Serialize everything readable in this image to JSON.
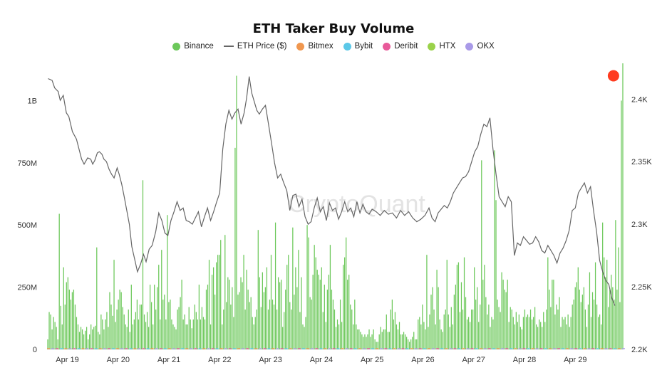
{
  "chart_data": {
    "type": "bar",
    "title": "ETH Taker Buy Volume",
    "legend": [
      {
        "name": "Binance",
        "color": "#6cc85a",
        "kind": "dot"
      },
      {
        "name": "ETH Price ($)",
        "color": "#666666",
        "kind": "line"
      },
      {
        "name": "Bitmex",
        "color": "#f0974f",
        "kind": "dot"
      },
      {
        "name": "Bybit",
        "color": "#5bc8e8",
        "kind": "dot"
      },
      {
        "name": "Deribit",
        "color": "#e85a9a",
        "kind": "dot"
      },
      {
        "name": "HTX",
        "color": "#9ad24a",
        "kind": "dot"
      },
      {
        "name": "OKX",
        "color": "#a99ae8",
        "kind": "dot"
      }
    ],
    "watermark": "CryptoQuant",
    "x_tick_labels": [
      "Apr 19",
      "Apr 20",
      "Apr 21",
      "Apr 22",
      "Apr 23",
      "Apr 24",
      "Apr 25",
      "Apr 26",
      "Apr 27",
      "Apr 28",
      "Apr 29"
    ],
    "x_range_days": [
      18.6,
      29.95
    ],
    "y_left": {
      "ticks": [
        0,
        250,
        500,
        750,
        1000
      ],
      "tick_labels": [
        "0",
        "250M",
        "500M",
        "750M",
        "1B"
      ],
      "range": [
        0,
        1150
      ],
      "unit": "M"
    },
    "y_right": {
      "ticks": [
        2.2,
        2.25,
        2.3,
        2.35,
        2.4
      ],
      "tick_labels": [
        "2.2K",
        "2.25K",
        "2.3K",
        "2.35K",
        "2.4K"
      ],
      "range": [
        2.2,
        2.4286
      ],
      "unit": "K"
    },
    "series": [
      {
        "name": "Binance",
        "color": "#6cc85a",
        "axis": "left",
        "values_M": [
          40,
          150,
          140,
          80,
          130,
          110,
          90,
          40,
          545,
          175,
          100,
          330,
          180,
          270,
          290,
          240,
          200,
          230,
          240,
          180,
          130,
          100,
          70,
          90,
          80,
          60,
          75,
          90,
          40,
          60,
          100,
          80,
          90,
          95,
          410,
          70,
          60,
          140,
          120,
          80,
          120,
          150,
          90,
          230,
          180,
          135,
          360,
          110,
          160,
          200,
          240,
          230,
          170,
          140,
          100,
          90,
          160,
          70,
          260,
          100,
          120,
          150,
          200,
          120,
          180,
          180,
          680,
          140,
          110,
          150,
          90,
          260,
          190,
          100,
          260,
          160,
          250,
          340,
          120,
          400,
          200,
          220,
          120,
          540,
          190,
          200,
          120,
          100,
          90,
          80,
          160,
          170,
          210,
          280,
          120,
          140,
          100,
          100,
          170,
          120,
          85,
          120,
          180,
          150,
          120,
          260,
          120,
          170,
          130,
          120,
          240,
          260,
          360,
          100,
          300,
          330,
          220,
          350,
          380,
          380,
          440,
          100,
          160,
          460,
          190,
          290,
          280,
          180,
          250,
          130,
          810,
          1100,
          220,
          230,
          290,
          270,
          380,
          160,
          320,
          240,
          190,
          210,
          130,
          100,
          130,
          160,
          480,
          290,
          170,
          310,
          230,
          250,
          330,
          160,
          200,
          380,
          200,
          180,
          510,
          160,
          290,
          270,
          280,
          90,
          150,
          240,
          340,
          380,
          190,
          160,
          490,
          220,
          330,
          250,
          400,
          150,
          290,
          100,
          90,
          130,
          500,
          450,
          210,
          200,
          300,
          420,
          370,
          320,
          300,
          280,
          330,
          150,
          260,
          110,
          240,
          300,
          420,
          240,
          200,
          160,
          90,
          120,
          100,
          200,
          110,
          340,
          370,
          450,
          280,
          300,
          180,
          160,
          100,
          200,
          100,
          80,
          80,
          70,
          60,
          50,
          60,
          50,
          60,
          80,
          50,
          60,
          80,
          40,
          30,
          30,
          60,
          90,
          70,
          80,
          80,
          140,
          70,
          70,
          160,
          200,
          120,
          150,
          100,
          80,
          110,
          60,
          60,
          70,
          60,
          50,
          40,
          30,
          40,
          50,
          70,
          40,
          40,
          120,
          130,
          100,
          180,
          110,
          80,
          380,
          90,
          140,
          220,
          250,
          160,
          100,
          320,
          250,
          120,
          80,
          70,
          140,
          160,
          360,
          140,
          90,
          170,
          100,
          220,
          260,
          340,
          350,
          150,
          270,
          160,
          370,
          210,
          120,
          130,
          110,
          160,
          160,
          330,
          200,
          250,
          110,
          180,
          760,
          280,
          340,
          210,
          140,
          180,
          90,
          130,
          120,
          800,
          600,
          200,
          170,
          150,
          310,
          280,
          240,
          230,
          280,
          110,
          170,
          160,
          130,
          100,
          150,
          110,
          140,
          90,
          80,
          130,
          160,
          130,
          140,
          130,
          160,
          120,
          130,
          170,
          100,
          90,
          120,
          110,
          90,
          150,
          110,
          160,
          370,
          240,
          170,
          280,
          280,
          140,
          180,
          160,
          210,
          90,
          130,
          120,
          130,
          100,
          140,
          90,
          130,
          180,
          200,
          250,
          270,
          330,
          240,
          190,
          220,
          250,
          160,
          90,
          180,
          310,
          130,
          230,
          200,
          350,
          180,
          130,
          140,
          100,
          510,
          370,
          290,
          360,
          170,
          240,
          300,
          250,
          200,
          520,
          240,
          410,
          190,
          1000,
          1150
        ]
      },
      {
        "name": "ETH Price ($)",
        "color": "#666666",
        "axis": "right",
        "points_day_K": [
          [
            18.62,
            2.4164
          ],
          [
            18.7,
            2.415
          ],
          [
            18.75,
            2.409
          ],
          [
            18.82,
            2.406
          ],
          [
            18.86,
            2.399
          ],
          [
            18.92,
            2.403
          ],
          [
            18.98,
            2.389
          ],
          [
            19.03,
            2.386
          ],
          [
            19.1,
            2.374
          ],
          [
            19.18,
            2.368
          ],
          [
            19.23,
            2.36
          ],
          [
            19.28,
            2.352
          ],
          [
            19.33,
            2.348
          ],
          [
            19.4,
            2.353
          ],
          [
            19.46,
            2.352
          ],
          [
            19.5,
            2.348
          ],
          [
            19.54,
            2.351
          ],
          [
            19.59,
            2.357
          ],
          [
            19.63,
            2.358
          ],
          [
            19.68,
            2.356
          ],
          [
            19.72,
            2.352
          ],
          [
            19.77,
            2.35
          ],
          [
            19.82,
            2.344
          ],
          [
            19.87,
            2.34
          ],
          [
            19.92,
            2.337
          ],
          [
            19.98,
            2.345
          ],
          [
            20.02,
            2.34
          ],
          [
            20.07,
            2.332
          ],
          [
            20.12,
            2.322
          ],
          [
            20.17,
            2.311
          ],
          [
            20.22,
            2.3
          ],
          [
            20.27,
            2.282
          ],
          [
            20.32,
            2.273
          ],
          [
            20.38,
            2.262
          ],
          [
            20.44,
            2.268
          ],
          [
            20.5,
            2.276
          ],
          [
            20.55,
            2.27
          ],
          [
            20.61,
            2.28
          ],
          [
            20.67,
            2.283
          ],
          [
            20.74,
            2.294
          ],
          [
            20.8,
            2.309
          ],
          [
            20.86,
            2.303
          ],
          [
            20.92,
            2.293
          ],
          [
            20.98,
            2.291
          ],
          [
            21.04,
            2.303
          ],
          [
            21.1,
            2.31
          ],
          [
            21.16,
            2.318
          ],
          [
            21.22,
            2.311
          ],
          [
            21.28,
            2.313
          ],
          [
            21.34,
            2.303
          ],
          [
            21.4,
            2.302
          ],
          [
            21.46,
            2.3
          ],
          [
            21.52,
            2.305
          ],
          [
            21.58,
            2.31
          ],
          [
            21.64,
            2.298
          ],
          [
            21.7,
            2.306
          ],
          [
            21.76,
            2.313
          ],
          [
            21.82,
            2.303
          ],
          [
            21.88,
            2.31
          ],
          [
            21.94,
            2.318
          ],
          [
            22.0,
            2.325
          ],
          [
            22.06,
            2.36
          ],
          [
            22.12,
            2.38
          ],
          [
            22.18,
            2.391
          ],
          [
            22.24,
            2.384
          ],
          [
            22.3,
            2.389
          ],
          [
            22.36,
            2.392
          ],
          [
            22.42,
            2.38
          ],
          [
            22.48,
            2.389
          ],
          [
            22.53,
            2.401
          ],
          [
            22.58,
            2.418
          ],
          [
            22.63,
            2.405
          ],
          [
            22.68,
            2.398
          ],
          [
            22.73,
            2.391
          ],
          [
            22.78,
            2.388
          ],
          [
            22.84,
            2.392
          ],
          [
            22.9,
            2.395
          ],
          [
            22.96,
            2.38
          ],
          [
            23.02,
            2.365
          ],
          [
            23.08,
            2.349
          ],
          [
            23.14,
            2.337
          ],
          [
            23.2,
            2.34
          ],
          [
            23.26,
            2.333
          ],
          [
            23.32,
            2.327
          ],
          [
            23.38,
            2.311
          ],
          [
            23.44,
            2.323
          ],
          [
            23.5,
            2.324
          ],
          [
            23.56,
            2.314
          ],
          [
            23.62,
            2.32
          ],
          [
            23.68,
            2.306
          ],
          [
            23.74,
            2.3
          ],
          [
            23.8,
            2.302
          ],
          [
            23.86,
            2.313
          ],
          [
            23.92,
            2.321
          ],
          [
            23.98,
            2.31
          ],
          [
            24.04,
            2.314
          ],
          [
            24.1,
            2.303
          ],
          [
            24.16,
            2.317
          ],
          [
            24.22,
            2.311
          ],
          [
            24.28,
            2.313
          ],
          [
            24.34,
            2.304
          ],
          [
            24.4,
            2.31
          ],
          [
            24.46,
            2.318
          ],
          [
            24.52,
            2.31
          ],
          [
            24.58,
            2.313
          ],
          [
            24.64,
            2.306
          ],
          [
            24.7,
            2.318
          ],
          [
            24.76,
            2.309
          ],
          [
            24.82,
            2.316
          ],
          [
            24.88,
            2.31
          ],
          [
            24.94,
            2.308
          ],
          [
            25.0,
            2.312
          ],
          [
            25.08,
            2.31
          ],
          [
            25.16,
            2.307
          ],
          [
            25.24,
            2.311
          ],
          [
            25.32,
            2.308
          ],
          [
            25.4,
            2.309
          ],
          [
            25.48,
            2.305
          ],
          [
            25.56,
            2.311
          ],
          [
            25.64,
            2.307
          ],
          [
            25.72,
            2.31
          ],
          [
            25.8,
            2.305
          ],
          [
            25.88,
            2.302
          ],
          [
            25.96,
            2.304
          ],
          [
            26.04,
            2.307
          ],
          [
            26.12,
            2.313
          ],
          [
            26.18,
            2.305
          ],
          [
            26.24,
            2.302
          ],
          [
            26.3,
            2.309
          ],
          [
            26.36,
            2.312
          ],
          [
            26.42,
            2.315
          ],
          [
            26.48,
            2.313
          ],
          [
            26.54,
            2.318
          ],
          [
            26.6,
            2.325
          ],
          [
            26.66,
            2.329
          ],
          [
            26.72,
            2.333
          ],
          [
            26.78,
            2.337
          ],
          [
            26.84,
            2.338
          ],
          [
            26.9,
            2.342
          ],
          [
            26.96,
            2.35
          ],
          [
            27.02,
            2.358
          ],
          [
            27.08,
            2.362
          ],
          [
            27.14,
            2.372
          ],
          [
            27.2,
            2.38
          ],
          [
            27.26,
            2.378
          ],
          [
            27.32,
            2.385
          ],
          [
            27.38,
            2.36
          ],
          [
            27.44,
            2.34
          ],
          [
            27.5,
            2.322
          ],
          [
            27.56,
            2.318
          ],
          [
            27.62,
            2.314
          ],
          [
            27.68,
            2.322
          ],
          [
            27.74,
            2.318
          ],
          [
            27.8,
            2.275
          ],
          [
            27.86,
            2.285
          ],
          [
            27.92,
            2.283
          ],
          [
            27.98,
            2.29
          ],
          [
            28.04,
            2.287
          ],
          [
            28.1,
            2.284
          ],
          [
            28.16,
            2.285
          ],
          [
            28.22,
            2.29
          ],
          [
            28.28,
            2.286
          ],
          [
            28.34,
            2.279
          ],
          [
            28.4,
            2.277
          ],
          [
            28.46,
            2.283
          ],
          [
            28.52,
            2.279
          ],
          [
            28.58,
            2.275
          ],
          [
            28.64,
            2.269
          ],
          [
            28.7,
            2.277
          ],
          [
            28.76,
            2.281
          ],
          [
            28.82,
            2.287
          ],
          [
            28.88,
            2.295
          ],
          [
            28.94,
            2.311
          ],
          [
            29.0,
            2.313
          ],
          [
            29.06,
            2.325
          ],
          [
            29.12,
            2.329
          ],
          [
            29.18,
            2.333
          ],
          [
            29.24,
            2.325
          ],
          [
            29.3,
            2.33
          ],
          [
            29.36,
            2.311
          ],
          [
            29.42,
            2.294
          ],
          [
            29.48,
            2.271
          ],
          [
            29.54,
            2.262
          ],
          [
            29.6,
            2.255
          ],
          [
            29.66,
            2.252
          ],
          [
            29.72,
            2.241
          ],
          [
            29.78,
            2.235
          ]
        ]
      }
    ],
    "highlight_marker": {
      "day": 29.78,
      "value_M": 1100,
      "color": "#ff3b1f"
    },
    "grid": false
  }
}
